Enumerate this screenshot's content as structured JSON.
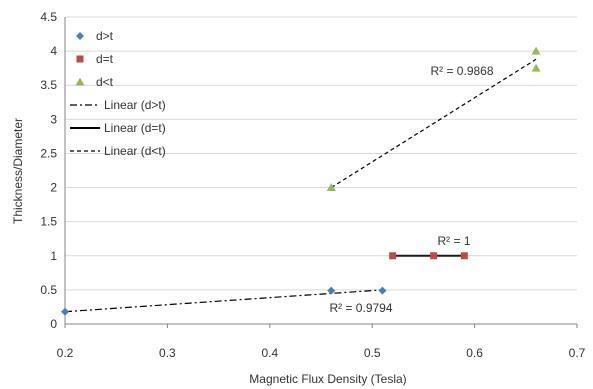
{
  "chart_data": {
    "type": "scatter",
    "title": "",
    "xlabel": "Magnetic Flux Density (Tesla)",
    "ylabel": "Thickness/Diameter",
    "xlim": [
      0.2,
      0.7
    ],
    "ylim": [
      0,
      4.5
    ],
    "xticks": [
      0.2,
      0.3,
      0.4,
      0.5,
      0.6,
      0.7
    ],
    "yticks": [
      0,
      0.5,
      1,
      1.5,
      2,
      2.5,
      3,
      3.5,
      4,
      4.5
    ],
    "xtick_labels": [
      "0.2",
      "0.3",
      "0.4",
      "0.5",
      "0.6",
      "0.7"
    ],
    "ytick_labels": [
      "0",
      "0.5",
      "1",
      "1.5",
      "2",
      "2.5",
      "3",
      "3.5",
      "4",
      "4.5"
    ],
    "grid": "horizontal",
    "legend_position": "top-left",
    "series": [
      {
        "name": "d>t",
        "marker": "diamond",
        "color": "#4a7ebb",
        "x": [
          0.2,
          0.46,
          0.51
        ],
        "y": [
          0.18,
          0.49,
          0.49
        ],
        "trendline": {
          "name": "Linear (d>t)",
          "style": "dash-dot",
          "r2_label": "R² = 0.9794",
          "from": [
            0.2,
            0.18
          ],
          "to": [
            0.51,
            0.5
          ]
        }
      },
      {
        "name": "d=t",
        "marker": "square",
        "color": "#be4b48",
        "x": [
          0.52,
          0.56,
          0.59
        ],
        "y": [
          1,
          1,
          1
        ],
        "trendline": {
          "name": "Linear (d=t)",
          "style": "solid",
          "r2_label": "R² = 1",
          "from": [
            0.52,
            1
          ],
          "to": [
            0.59,
            1
          ]
        }
      },
      {
        "name": "d<t",
        "marker": "triangle",
        "color": "#98b954",
        "x": [
          0.46,
          0.66,
          0.66
        ],
        "y": [
          2,
          4,
          3.75
        ],
        "trendline": {
          "name": "Linear (d<t)",
          "style": "dashed",
          "r2_label": "R² = 0.9868",
          "from": [
            0.46,
            2
          ],
          "to": [
            0.66,
            3.88
          ]
        }
      }
    ]
  }
}
